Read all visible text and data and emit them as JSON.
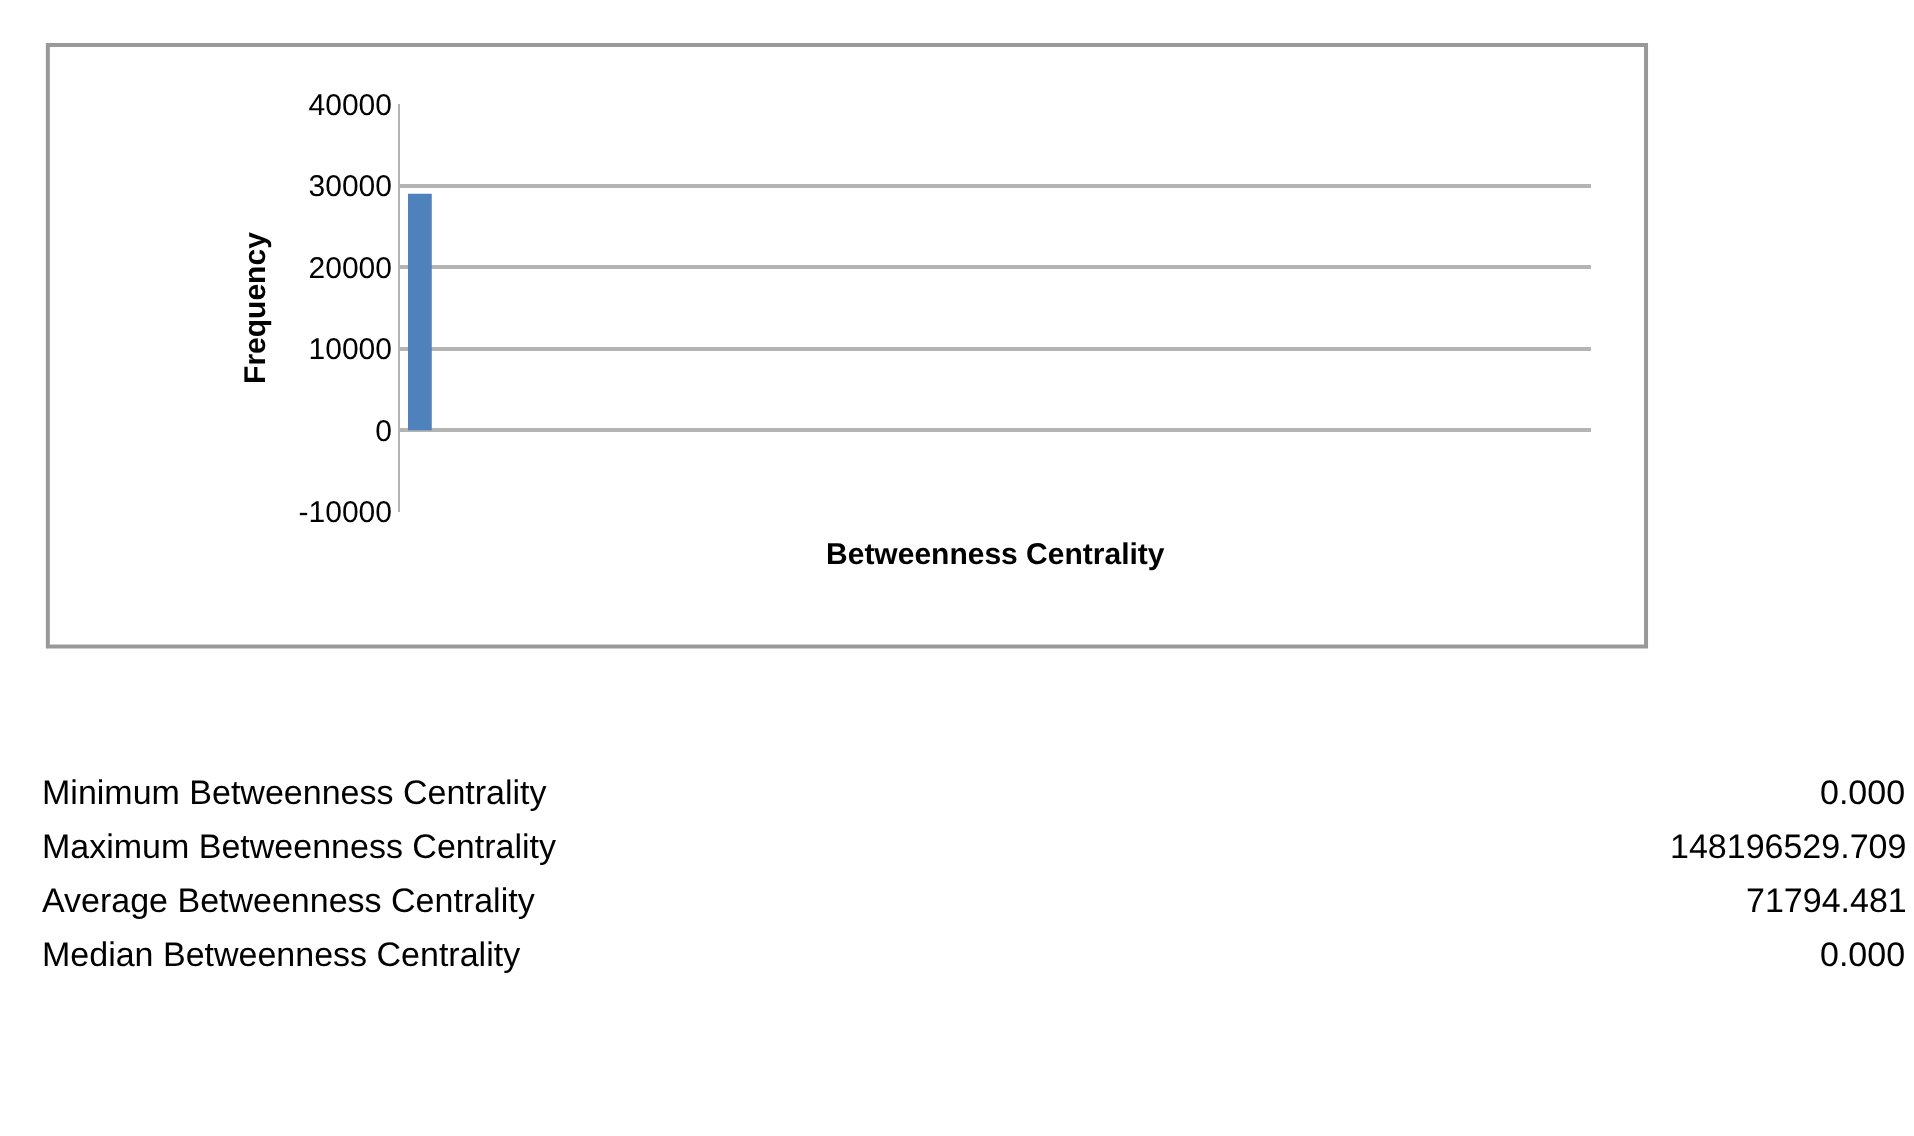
{
  "chart_data": {
    "type": "bar",
    "xlabel": "Betweenness Centrality",
    "ylabel": "Frequency",
    "categories": [
      null,
      null,
      null,
      null,
      null,
      null,
      null,
      null,
      null,
      null,
      null,
      null,
      null,
      null,
      null,
      null,
      null,
      null,
      null,
      null,
      null,
      null,
      null,
      null,
      null,
      null,
      null,
      null,
      null,
      null
    ],
    "values": [
      29000,
      0,
      0,
      0,
      0,
      0,
      0,
      0,
      0,
      0,
      0,
      0,
      0,
      0,
      0,
      0,
      0,
      0,
      0,
      0,
      0,
      0,
      0,
      0,
      0,
      0,
      0,
      0,
      0,
      0
    ],
    "color": "#4f81bd",
    "ylim": [
      -10000,
      40000
    ],
    "yticks": [
      -10000,
      0,
      10000,
      20000,
      30000,
      40000
    ],
    "grid": "y",
    "legend": false,
    "annotations": [
      "Minimum Betweenness Centrality",
      "0.000",
      "Maximum Betweenness Centrality",
      "148196529.709",
      "Average Betweenness Centrality",
      "71794.481",
      "Median Betweenness Centrality",
      "0.000"
    ]
  }
}
